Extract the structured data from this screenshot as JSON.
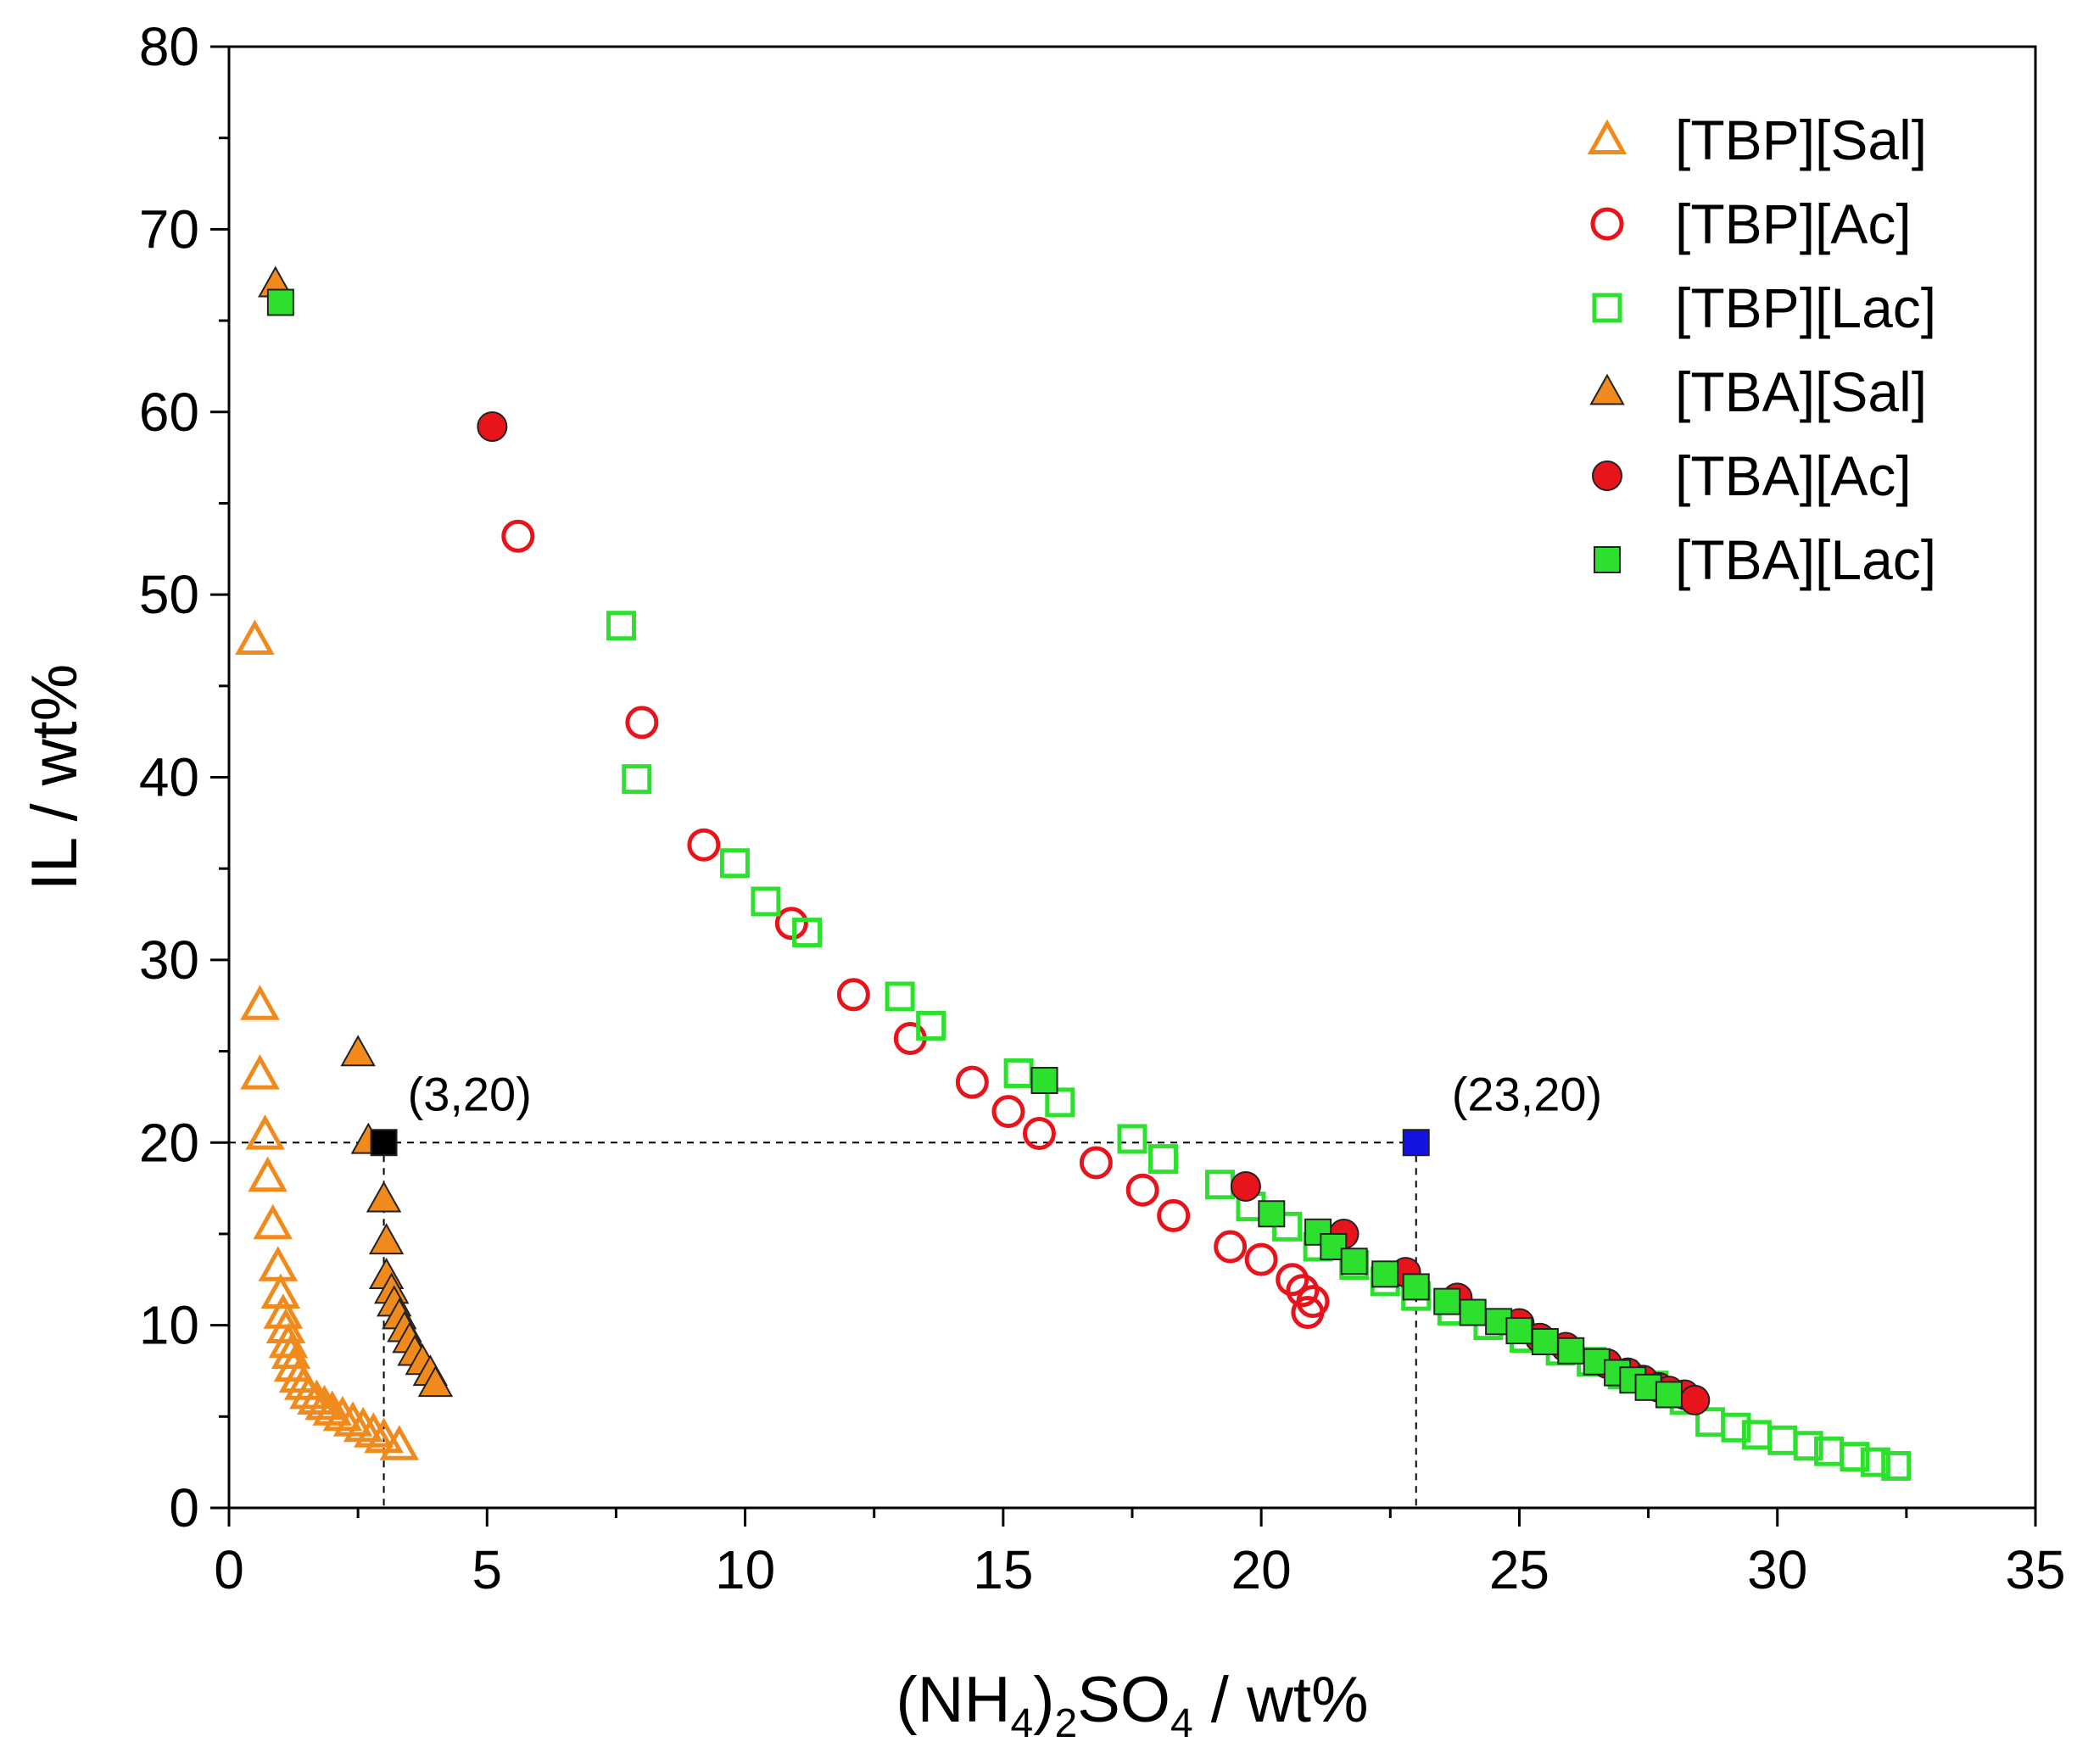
{
  "chart_data": {
    "type": "scatter",
    "title": "",
    "xlabel": {
      "main": "(NH",
      "sub1": "4",
      "mid": ")",
      "sub2": "2",
      "mid2": "SO",
      "sub3": "4",
      "tail": " / wt%"
    },
    "ylabel": "IL / wt%",
    "xlim": [
      0,
      35
    ],
    "ylim": [
      0,
      80
    ],
    "xticks": [
      0,
      5,
      10,
      15,
      20,
      25,
      30,
      35
    ],
    "yticks": [
      0,
      10,
      20,
      30,
      40,
      50,
      60,
      70,
      80
    ],
    "legend_position": "top-right",
    "series": [
      {
        "name": "[TBP][Sal]",
        "marker": "triangle",
        "filled": false,
        "color": "#f08a1c",
        "x": [
          0.5,
          0.6,
          0.6,
          0.7,
          0.75,
          0.85,
          0.95,
          1.0,
          1.05,
          1.1,
          1.15,
          1.2,
          1.25,
          1.35,
          1.45,
          1.55,
          1.7,
          1.85,
          2.0,
          2.2,
          2.4,
          2.6,
          2.8,
          3.0,
          3.3
        ],
        "y": [
          47.5,
          27.5,
          23.7,
          20.4,
          18.1,
          15.5,
          13.2,
          11.7,
          10.6,
          9.8,
          9.0,
          8.4,
          7.7,
          7.1,
          6.7,
          6.2,
          5.9,
          5.6,
          5.3,
          5.0,
          4.7,
          4.4,
          4.1,
          3.8,
          3.4
        ]
      },
      {
        "name": "[TBP][Ac]",
        "marker": "circle",
        "filled": false,
        "color": "#e8141c",
        "x": [
          5.6,
          8.0,
          9.2,
          10.9,
          12.1,
          13.2,
          14.4,
          15.1,
          15.7,
          16.8,
          17.7,
          18.3,
          19.4,
          20.0,
          20.6,
          20.8,
          21.0,
          20.9
        ],
        "y": [
          53.2,
          43.0,
          36.3,
          32.0,
          28.1,
          25.7,
          23.3,
          21.7,
          20.5,
          18.9,
          17.4,
          16.0,
          14.3,
          13.6,
          12.5,
          11.9,
          11.3,
          10.7
        ]
      },
      {
        "name": "[TBP][Lac]",
        "marker": "square",
        "filled": false,
        "color": "#2ee02e",
        "x": [
          7.6,
          7.9,
          9.8,
          10.4,
          11.2,
          13.0,
          13.6,
          15.3,
          16.1,
          17.5,
          18.1,
          19.2,
          19.8,
          20.5,
          21.1,
          21.8,
          22.4,
          23.0,
          23.7,
          24.4,
          25.1,
          25.8,
          26.4,
          27.0,
          27.6,
          28.2,
          28.7,
          29.2,
          29.6,
          30.1,
          30.6,
          31.0,
          31.5,
          31.9,
          32.3
        ],
        "y": [
          48.3,
          39.9,
          35.3,
          33.2,
          31.5,
          28.0,
          26.4,
          23.8,
          22.2,
          20.2,
          19.1,
          17.7,
          16.5,
          15.4,
          14.3,
          13.3,
          12.4,
          11.6,
          10.8,
          10.0,
          9.3,
          8.6,
          8.0,
          7.3,
          6.7,
          5.9,
          4.7,
          4.4,
          4.0,
          3.7,
          3.4,
          3.1,
          2.8,
          2.5,
          2.3
        ]
      },
      {
        "name": "[TBA][Sal]",
        "marker": "triangle",
        "filled": true,
        "color": "#f08a1c",
        "x": [
          0.9,
          2.5,
          2.7,
          3.0,
          3.05,
          3.05,
          3.15,
          3.2,
          3.3,
          3.4,
          3.5,
          3.6,
          3.75,
          3.9,
          4.0
        ],
        "y": [
          67.0,
          24.9,
          20.1,
          16.9,
          14.6,
          12.7,
          11.9,
          11.2,
          10.5,
          9.8,
          9.2,
          8.5,
          8.0,
          7.4,
          6.8
        ]
      },
      {
        "name": "[TBA][Ac]",
        "marker": "circle",
        "filled": true,
        "color": "#e8141c",
        "x": [
          5.1,
          19.7,
          21.6,
          22.8,
          23.8,
          25.0,
          25.4,
          25.9,
          26.7,
          27.1,
          27.4,
          27.7,
          27.9,
          28.2,
          28.4
        ],
        "y": [
          59.2,
          17.6,
          15.0,
          12.9,
          11.5,
          10.1,
          9.3,
          8.8,
          7.9,
          7.4,
          7.0,
          6.6,
          6.4,
          6.2,
          5.9
        ]
      },
      {
        "name": "[TBA][Lac]",
        "marker": "square",
        "filled": true,
        "color": "#2ee02e",
        "x": [
          1.0,
          15.8,
          20.2,
          21.1,
          21.4,
          21.8,
          22.4,
          23.0,
          23.6,
          24.1,
          24.6,
          25.0,
          25.5,
          26.0,
          26.5,
          26.9,
          27.2,
          27.5,
          27.9
        ],
        "y": [
          66.0,
          23.4,
          16.1,
          15.1,
          14.3,
          13.5,
          12.8,
          12.1,
          11.3,
          10.7,
          10.2,
          9.7,
          9.1,
          8.6,
          8.0,
          7.4,
          7.0,
          6.6,
          6.2
        ]
      }
    ],
    "annotations": [
      {
        "label": "(3,20)",
        "x": 3,
        "y": 20,
        "marker_color": "#000000"
      },
      {
        "label": "(23,20)",
        "x": 23,
        "y": 20,
        "marker_color": "#1414e0"
      }
    ]
  }
}
